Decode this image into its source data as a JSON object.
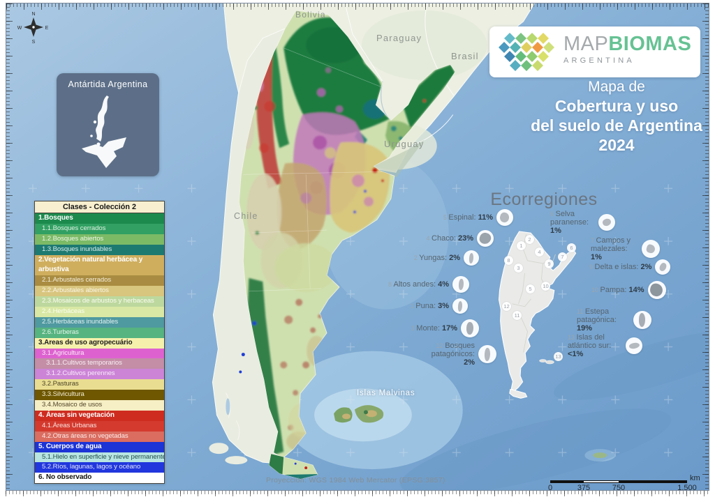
{
  "logo": {
    "map": "MAP",
    "biomas": "BIOMAS",
    "argentina": "ARGENTINA"
  },
  "title": {
    "line1": "Mapa de",
    "line2": "Cobertura y uso",
    "line3": "del suelo de Argentina",
    "line4": "2024"
  },
  "inset": {
    "label": "Antártida Argentina"
  },
  "compass": {
    "n": "N",
    "e": "E",
    "s": "S",
    "w": "W"
  },
  "countries": {
    "bolivia": "Bolivia",
    "paraguay": "Paraguay",
    "brasil": "Brasil",
    "uruguay": "Uruguay",
    "chile": "Chile",
    "malvinas": "Islas Malvinas"
  },
  "legend": {
    "header": "Clases - Colección 2",
    "items": [
      {
        "label": "1.Bosques",
        "color": "#1d8a4d",
        "text_color": "#ffffff",
        "bold": true,
        "indent": 0
      },
      {
        "label": "1.1.Bosques cerrados",
        "color": "#31a062",
        "text_color": "#dff0e2",
        "indent": 1
      },
      {
        "label": "1.2.Bosques abiertos",
        "color": "#7cba66",
        "text_color": "#eef6e8",
        "indent": 1
      },
      {
        "label": "1.3.Bosques inundables",
        "color": "#1d7a71",
        "text_color": "#d9ecea",
        "indent": 1
      },
      {
        "label": "2.Vegetación natural herbácea y arbustiva",
        "color": "#cfae5e",
        "text_color": "#ffffff",
        "bold": true,
        "indent": 0,
        "wrap": true
      },
      {
        "label": "2.1.Arbustales cerrados",
        "color": "#a98c41",
        "text_color": "#f3ecd9",
        "indent": 1
      },
      {
        "label": "2.2.Arbustales abiertos",
        "color": "#d8c57e",
        "text_color": "#faf6e6",
        "indent": 1
      },
      {
        "label": "2.3.Mosaicos de arbustos y herbaceas",
        "color": "#bdd89e",
        "text_color": "#f8fcf1",
        "indent": 1
      },
      {
        "label": "2.4.Herbáceas",
        "color": "#d9e8a4",
        "text_color": "#fbfef2",
        "indent": 1
      },
      {
        "label": "2.5.Herbáceas inundables",
        "color": "#4f99a0",
        "text_color": "#e0efef",
        "indent": 1
      },
      {
        "label": "2.6.Turberas",
        "color": "#56b480",
        "text_color": "#e4f4ea",
        "indent": 1
      },
      {
        "label": "3.Areas de uso agropecuário",
        "color": "#f5f1ac",
        "text_color": "#1d1d1d",
        "bold": true,
        "indent": 0
      },
      {
        "label": "3.1.Agricultura",
        "color": "#dd62d0",
        "text_color": "#fbe9f8",
        "indent": 1
      },
      {
        "label": "3.1.1.Cultivos temporarios",
        "color": "#c38ea6",
        "text_color": "#f8eef2",
        "indent": 2
      },
      {
        "label": "3.1.2.Cultivos perennes",
        "color": "#cc84d7",
        "text_color": "#f7ebfa",
        "indent": 2
      },
      {
        "label": "3.2.Pasturas",
        "color": "#e9dd91",
        "text_color": "#4c4426",
        "indent": 1
      },
      {
        "label": "3.3.Silvicultura",
        "color": "#6e5700",
        "text_color": "#f1ead3",
        "indent": 1
      },
      {
        "label": "3.4.Mosaico de usos",
        "color": "#f6eec4",
        "text_color": "#55492c",
        "indent": 1
      },
      {
        "label": "4. Áreas sin vegetación",
        "color": "#cf2c20",
        "text_color": "#ffffff",
        "bold": true,
        "indent": 0
      },
      {
        "label": "4.1.Áreas Urbanas",
        "color": "#d43a2e",
        "text_color": "#fbe3e0",
        "indent": 1
      },
      {
        "label": "4.2.Otras áreas no vegetadas",
        "color": "#da6c60",
        "text_color": "#fcebe8",
        "indent": 1
      },
      {
        "label": "5. Cuerpos de agua",
        "color": "#1c33d6",
        "text_color": "#ffffff",
        "bold": true,
        "indent": 0
      },
      {
        "label": "5.1.Hielo en superficie y nieve permanente",
        "color": "#b8e5e1",
        "text_color": "#23504e",
        "indent": 1
      },
      {
        "label": "5.2.Ríos, lagunas, lagos y océano",
        "color": "#2136dd",
        "text_color": "#e3e7fb",
        "indent": 1
      },
      {
        "label": "6. No observado",
        "color": "#ffffff",
        "text_color": "#111111",
        "bold": true,
        "indent": 0
      }
    ]
  },
  "ecoregions": {
    "title": "Ecorregiones",
    "left": [
      {
        "num": "5",
        "name": "Espinal",
        "value": "11%"
      },
      {
        "num": "4",
        "name": "Chaco",
        "value": "23%"
      },
      {
        "num": "2",
        "name": "Yungas",
        "value": "2%"
      },
      {
        "num": "8",
        "name": "Altos andes",
        "value": "4%"
      },
      {
        "num": "1",
        "name": "Puna",
        "value": "3%"
      },
      {
        "num": "3",
        "name": "Monte",
        "value": "17%"
      },
      {
        "num": "12",
        "name": "Bosques patagónicos",
        "value": "2%"
      }
    ],
    "right": [
      {
        "num": "6",
        "name": "Selva paranense",
        "value": "1%"
      },
      {
        "num": "7",
        "name": "Campos y malezales",
        "value": "1%"
      },
      {
        "num": "9",
        "name": "Delta e islas",
        "value": "2%"
      },
      {
        "num": "10",
        "name": "Pampa",
        "value": "14%"
      },
      {
        "num": "11",
        "name": "Estepa patagónica",
        "value": "19%"
      },
      {
        "num": "13",
        "name": "Islas del atlántico sur",
        "value": "<1%"
      }
    ],
    "minimap_numbers": [
      "1",
      "2",
      "3",
      "4",
      "5",
      "6",
      "7",
      "8",
      "9",
      "10",
      "11",
      "12",
      "13"
    ]
  },
  "scalebar": {
    "unit": "km",
    "ticks": [
      "0",
      "375",
      "750",
      "1.500"
    ]
  },
  "projection": "Proyección: WGS 1984 Web Mercator (EPSG:3857)",
  "colors": {
    "logo_green": "#66c293",
    "ocean_base": "#84afd6",
    "legend_header_bg": "#f7efcf",
    "eco_label_text": "#57656f",
    "inset_bg": "#5d6f88"
  }
}
